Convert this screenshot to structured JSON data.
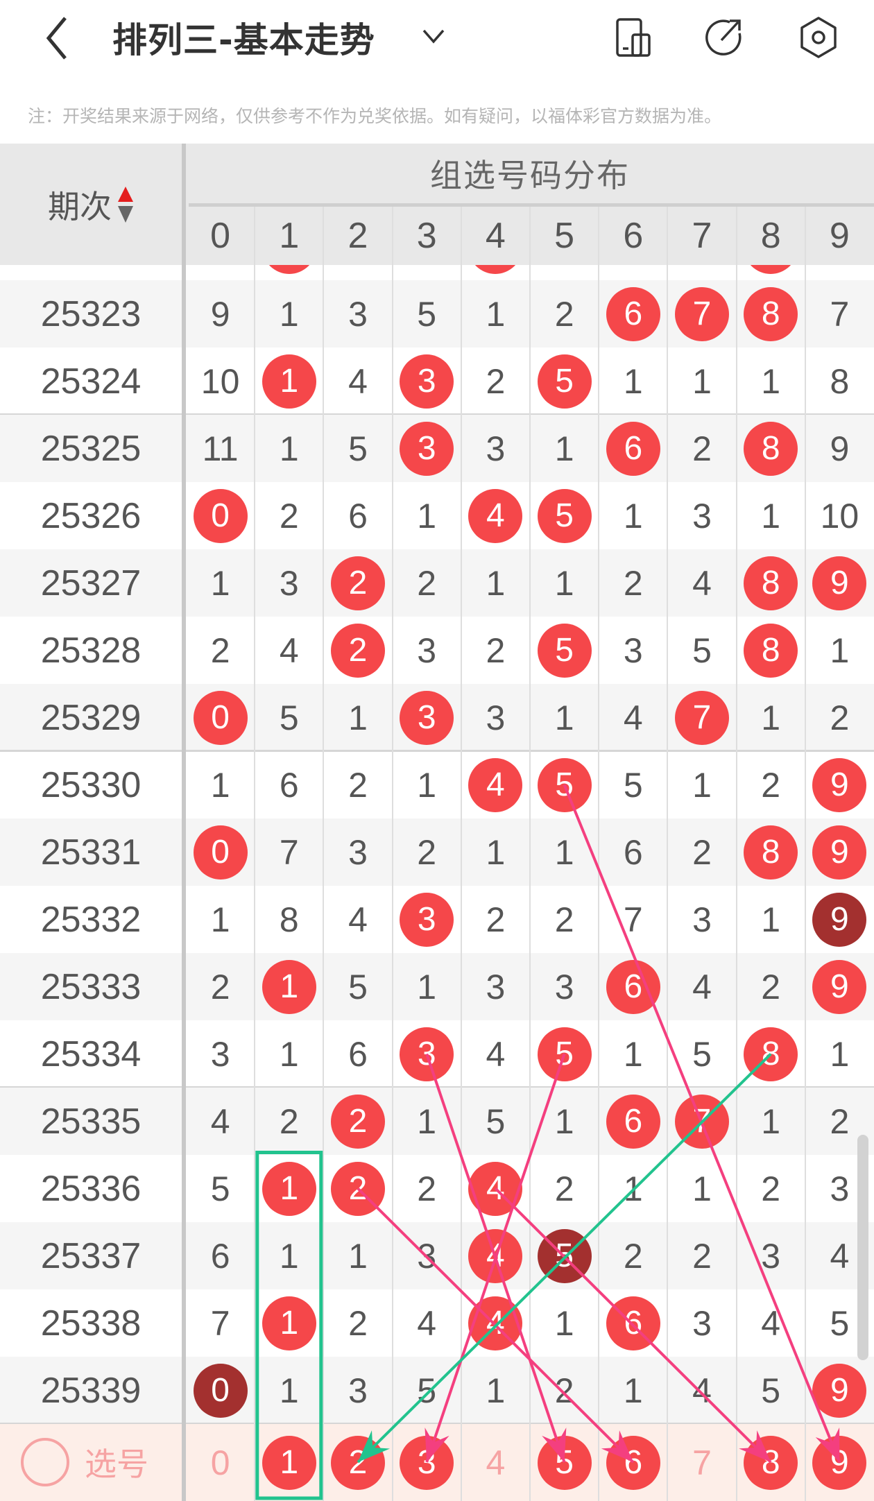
{
  "header": {
    "title": "排列三-基本走势",
    "icons": [
      "back-chevron-icon",
      "chevron-down-icon",
      "device-layout-icon",
      "share-icon",
      "settings-icon"
    ]
  },
  "note": "注：开奖结果来源于网络，仅供参考不作为兑奖依据。如有疑问，以福体彩官方数据为准。",
  "table": {
    "period_label": "期次",
    "group_label": "组选号码分布",
    "digits": [
      "0",
      "1",
      "2",
      "3",
      "4",
      "5",
      "6",
      "7",
      "8",
      "9"
    ],
    "rows": [
      {
        "period": "25323",
        "cells": [
          "9",
          "1",
          "3",
          "5",
          "1",
          "2",
          "6",
          "7",
          "8",
          "7"
        ],
        "hits": [
          6,
          7,
          8
        ],
        "dark": []
      },
      {
        "period": "25324",
        "cells": [
          "10",
          "1",
          "4",
          "3",
          "2",
          "5",
          "1",
          "1",
          "1",
          "8"
        ],
        "hits": [
          1,
          3,
          5
        ],
        "dark": []
      },
      {
        "period": "25325",
        "cells": [
          "11",
          "1",
          "5",
          "3",
          "3",
          "1",
          "6",
          "2",
          "8",
          "9"
        ],
        "hits": [
          3,
          6,
          8
        ],
        "dark": []
      },
      {
        "period": "25326",
        "cells": [
          "0",
          "2",
          "6",
          "1",
          "4",
          "5",
          "1",
          "3",
          "1",
          "10"
        ],
        "hits": [
          0,
          4,
          5
        ],
        "dark": []
      },
      {
        "period": "25327",
        "cells": [
          "1",
          "3",
          "2",
          "2",
          "1",
          "1",
          "2",
          "4",
          "8",
          "9"
        ],
        "hits": [
          2,
          8,
          9
        ],
        "dark": []
      },
      {
        "period": "25328",
        "cells": [
          "2",
          "4",
          "2",
          "3",
          "2",
          "5",
          "3",
          "5",
          "8",
          "1"
        ],
        "hits": [
          2,
          5,
          8
        ],
        "dark": []
      },
      {
        "period": "25329",
        "cells": [
          "0",
          "5",
          "1",
          "3",
          "3",
          "1",
          "4",
          "7",
          "1",
          "2"
        ],
        "hits": [
          0,
          3,
          7
        ],
        "dark": []
      },
      {
        "period": "25330",
        "cells": [
          "1",
          "6",
          "2",
          "1",
          "4",
          "5",
          "5",
          "1",
          "2",
          "9"
        ],
        "hits": [
          4,
          5,
          9
        ],
        "dark": []
      },
      {
        "period": "25331",
        "cells": [
          "0",
          "7",
          "3",
          "2",
          "1",
          "1",
          "6",
          "2",
          "8",
          "9"
        ],
        "hits": [
          0,
          8,
          9
        ],
        "dark": []
      },
      {
        "period": "25332",
        "cells": [
          "1",
          "8",
          "4",
          "3",
          "2",
          "2",
          "7",
          "3",
          "1",
          "9"
        ],
        "hits": [
          3,
          9
        ],
        "dark": [
          9
        ]
      },
      {
        "period": "25333",
        "cells": [
          "2",
          "1",
          "5",
          "1",
          "3",
          "3",
          "6",
          "4",
          "2",
          "9"
        ],
        "hits": [
          1,
          6,
          9
        ],
        "dark": []
      },
      {
        "period": "25334",
        "cells": [
          "3",
          "1",
          "6",
          "3",
          "4",
          "5",
          "1",
          "5",
          "8",
          "1"
        ],
        "hits": [
          3,
          5,
          8
        ],
        "dark": []
      },
      {
        "period": "25335",
        "cells": [
          "4",
          "2",
          "2",
          "1",
          "5",
          "1",
          "6",
          "7",
          "1",
          "2"
        ],
        "hits": [
          2,
          6,
          7
        ],
        "dark": []
      },
      {
        "period": "25336",
        "cells": [
          "5",
          "1",
          "2",
          "2",
          "4",
          "2",
          "1",
          "1",
          "2",
          "3"
        ],
        "hits": [
          1,
          2,
          4
        ],
        "dark": []
      },
      {
        "period": "25337",
        "cells": [
          "6",
          "1",
          "1",
          "3",
          "4",
          "5",
          "2",
          "2",
          "3",
          "4"
        ],
        "hits": [
          4,
          5
        ],
        "dark": [
          5
        ]
      },
      {
        "period": "25338",
        "cells": [
          "7",
          "1",
          "2",
          "4",
          "4",
          "1",
          "6",
          "3",
          "4",
          "5"
        ],
        "hits": [
          1,
          4,
          6
        ],
        "dark": []
      },
      {
        "period": "25339",
        "cells": [
          "0",
          "1",
          "3",
          "5",
          "1",
          "2",
          "1",
          "4",
          "5",
          "9"
        ],
        "hits": [
          0,
          9
        ],
        "dark": [
          0
        ]
      }
    ],
    "select": {
      "label": "选号",
      "digits": [
        "0",
        "1",
        "2",
        "3",
        "4",
        "5",
        "6",
        "7",
        "8",
        "9"
      ],
      "selected": [
        1,
        2,
        3,
        5,
        6,
        8,
        9
      ]
    }
  },
  "annotations": {
    "highlight_box": {
      "digit": 1,
      "from_period": "25336",
      "to": "select"
    },
    "arrows": [
      {
        "color": "#f43f7f",
        "from_period": "25330",
        "from_digit": 5,
        "to_digit": 9
      },
      {
        "color": "#f43f7f",
        "from_period": "25334",
        "from_digit": 3,
        "to_digit": 5
      },
      {
        "color": "#f43f7f",
        "from_period": "25334",
        "from_digit": 5,
        "to_digit": 3
      },
      {
        "color": "#f43f7f",
        "from_period": "25336",
        "from_digit": 2,
        "to_digit": 6
      },
      {
        "color": "#f43f7f",
        "from_period": "25336",
        "from_digit": 4,
        "to_digit": 8
      },
      {
        "color": "#22c38e",
        "from_period": "25334",
        "from_digit": 8,
        "to_digit": 2
      }
    ]
  },
  "colors": {
    "hit": "#f5474a",
    "repeat": "#a3302f",
    "box": "#22c38e"
  }
}
